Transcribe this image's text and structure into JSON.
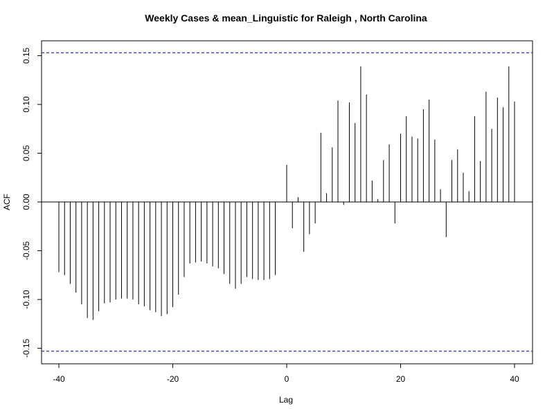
{
  "chart_data": {
    "type": "bar",
    "title": "Weekly Cases & mean_Linguistic for Raleigh , North Carolina",
    "xlabel": "Lag",
    "ylabel": "ACF",
    "xlim": [
      -42,
      43
    ],
    "ylim": [
      -0.165,
      0.165
    ],
    "x_ticks": [
      -40,
      -20,
      0,
      20,
      40
    ],
    "x_tick_labels": [
      "-40",
      "-20",
      "0",
      "20",
      "40"
    ],
    "y_ticks": [
      -0.15,
      -0.1,
      -0.05,
      0.0,
      0.05,
      0.1,
      0.15
    ],
    "y_tick_labels": [
      "-0.15",
      "-0.10",
      "-0.05",
      "0.00",
      "0.05",
      "0.10",
      "0.15"
    ],
    "confidence_bound": 0.153,
    "confidence_color": "#0000cc",
    "bar_color": "#000000",
    "zero_line": true,
    "grid": false,
    "lags": [
      -40,
      -39,
      -38,
      -37,
      -36,
      -35,
      -34,
      -33,
      -32,
      -31,
      -30,
      -29,
      -28,
      -27,
      -26,
      -25,
      -24,
      -23,
      -22,
      -21,
      -20,
      -19,
      -18,
      -17,
      -16,
      -15,
      -14,
      -13,
      -12,
      -11,
      -10,
      -9,
      -8,
      -7,
      -6,
      -5,
      -4,
      -3,
      -2,
      -1,
      0,
      1,
      2,
      3,
      4,
      5,
      6,
      7,
      8,
      9,
      10,
      11,
      12,
      13,
      14,
      15,
      16,
      17,
      18,
      19,
      20,
      21,
      22,
      23,
      24,
      25,
      26,
      27,
      28,
      29,
      30,
      31,
      32,
      33,
      34,
      35,
      36,
      37,
      38,
      39,
      40
    ],
    "acf": [
      -0.072,
      -0.075,
      -0.084,
      -0.093,
      -0.105,
      -0.119,
      -0.121,
      -0.112,
      -0.104,
      -0.103,
      -0.1,
      -0.099,
      -0.099,
      -0.1,
      -0.105,
      -0.107,
      -0.111,
      -0.113,
      -0.117,
      -0.115,
      -0.108,
      -0.095,
      -0.077,
      -0.063,
      -0.062,
      -0.061,
      -0.063,
      -0.066,
      -0.068,
      -0.074,
      -0.084,
      -0.089,
      -0.084,
      -0.077,
      -0.079,
      -0.08,
      -0.08,
      -0.079,
      -0.075,
      0.0,
      0.038,
      -0.027,
      0.005,
      -0.051,
      -0.033,
      -0.022,
      0.071,
      0.009,
      0.056,
      0.104,
      -0.003,
      0.102,
      0.081,
      0.139,
      0.11,
      0.022,
      0.003,
      0.043,
      0.059,
      -0.022,
      0.07,
      0.088,
      0.067,
      0.065,
      0.095,
      0.105,
      0.064,
      0.013,
      -0.036,
      0.043,
      0.054,
      0.03,
      0.011,
      0.088,
      0.042,
      0.113,
      0.075,
      0.107,
      0.097,
      0.139,
      0.103
    ]
  }
}
